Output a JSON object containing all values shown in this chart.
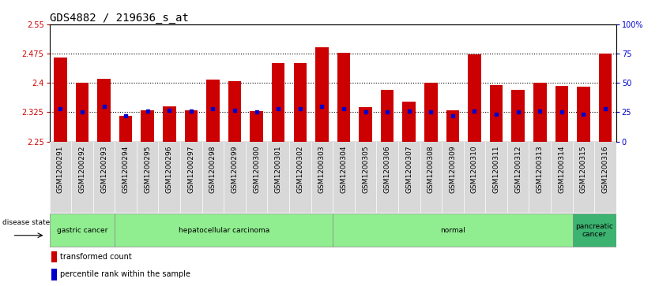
{
  "title": "GDS4882 / 219636_s_at",
  "samples": [
    "GSM1200291",
    "GSM1200292",
    "GSM1200293",
    "GSM1200294",
    "GSM1200295",
    "GSM1200296",
    "GSM1200297",
    "GSM1200298",
    "GSM1200299",
    "GSM1200300",
    "GSM1200301",
    "GSM1200302",
    "GSM1200303",
    "GSM1200304",
    "GSM1200305",
    "GSM1200306",
    "GSM1200307",
    "GSM1200308",
    "GSM1200309",
    "GSM1200310",
    "GSM1200311",
    "GSM1200312",
    "GSM1200313",
    "GSM1200314",
    "GSM1200315",
    "GSM1200316"
  ],
  "transformed_count": [
    2.465,
    2.4,
    2.41,
    2.315,
    2.33,
    2.34,
    2.33,
    2.408,
    2.405,
    2.328,
    2.45,
    2.45,
    2.492,
    2.478,
    2.338,
    2.382,
    2.353,
    2.4,
    2.33,
    2.473,
    2.395,
    2.383,
    2.4,
    2.392,
    2.39,
    2.475
  ],
  "percentile_rank": [
    28,
    25,
    30,
    22,
    26,
    27,
    26,
    28,
    27,
    25,
    28,
    28,
    30,
    28,
    25,
    25,
    26,
    25,
    22,
    26,
    23,
    25,
    26,
    25,
    23,
    28
  ],
  "ymin": 2.25,
  "ymax": 2.55,
  "yticks_left": [
    2.25,
    2.325,
    2.4,
    2.475,
    2.55
  ],
  "ytick_labels_left": [
    "2.25",
    "2.325",
    "2.4",
    "2.475",
    "2.55"
  ],
  "yticks_right_pct": [
    0,
    25,
    50,
    75,
    100
  ],
  "ytick_labels_right": [
    "0",
    "25",
    "50",
    "75",
    "100%"
  ],
  "hlines": [
    2.325,
    2.4,
    2.475
  ],
  "bar_color": "#CC0000",
  "percentile_color": "#0000CC",
  "disease_ranges": [
    {
      "label": "gastric cancer",
      "start": 0,
      "end": 2,
      "color": "#90EE90"
    },
    {
      "label": "hepatocellular carcinoma",
      "start": 3,
      "end": 12,
      "color": "#90EE90"
    },
    {
      "label": "normal",
      "start": 13,
      "end": 23,
      "color": "#90EE90"
    },
    {
      "label": "pancreatic\ncancer",
      "start": 24,
      "end": 25,
      "color": "#3CB371"
    }
  ],
  "bar_width": 0.6,
  "title_fontsize": 10,
  "tick_fontsize": 7,
  "bar_label_fontsize": 6.5
}
